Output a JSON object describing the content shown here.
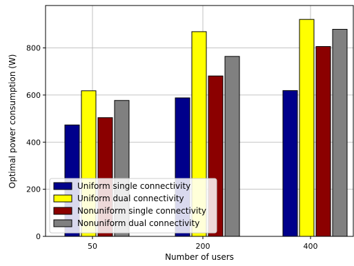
{
  "chart_data": {
    "type": "bar",
    "categories": [
      "50",
      "200",
      "400"
    ],
    "series": [
      {
        "name": "Uniform single connectivity",
        "color": "#00008b",
        "values": [
          473,
          588,
          619
        ]
      },
      {
        "name": "Uniform dual connectivity",
        "color": "#ffff00",
        "values": [
          618,
          869,
          921
        ]
      },
      {
        "name": "Nonuniform single connectivity",
        "color": "#8b0000",
        "values": [
          504,
          681,
          806
        ]
      },
      {
        "name": "Nonuniform dual connectivity",
        "color": "#808080",
        "values": [
          577,
          764,
          879
        ]
      }
    ],
    "title": "",
    "xlabel": "Number of users",
    "ylabel": "Optimal power consumption (W)",
    "ylim": [
      0,
      980
    ],
    "yticks": [
      0,
      200,
      400,
      600,
      800
    ],
    "grid": true,
    "legend_position": "lower-left"
  }
}
